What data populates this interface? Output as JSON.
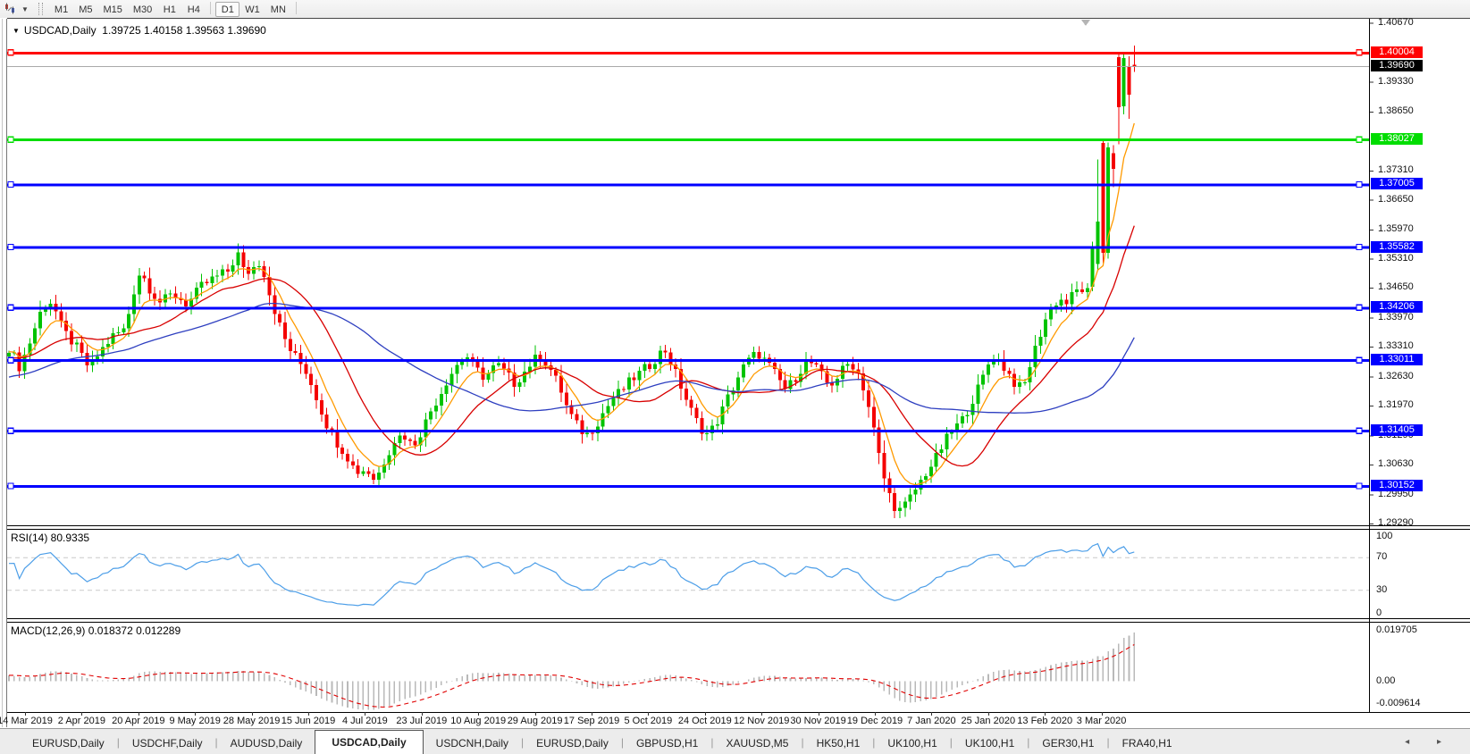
{
  "toolbar": {
    "icon": "chart-symbol-icon",
    "timeframes": [
      "M1",
      "M5",
      "M15",
      "M30",
      "H1",
      "H4",
      "D1",
      "W1",
      "MN"
    ],
    "active_timeframe": "D1"
  },
  "chart": {
    "title": "USDCAD,Daily",
    "ohlc_text": "1.39725 1.40158 1.39563 1.39690",
    "current_price": 1.3969,
    "price_axis_ticks": [
      1.4067,
      1.3933,
      1.3865,
      1.3731,
      1.3665,
      1.3597,
      1.3531,
      1.3465,
      1.3397,
      1.3331,
      1.3263,
      1.3197,
      1.3129,
      1.3063,
      1.2995,
      1.2929
    ],
    "levels": [
      {
        "price": 1.40004,
        "color": "#ff0000",
        "name": "resistance-line"
      },
      {
        "price": 1.38027,
        "color": "#00dd00",
        "name": "support-line"
      },
      {
        "price": 1.37005,
        "color": "#0000ff",
        "name": "level-line"
      },
      {
        "price": 1.35582,
        "color": "#0000ff",
        "name": "level-line"
      },
      {
        "price": 1.34206,
        "color": "#0000ff",
        "name": "level-line"
      },
      {
        "price": 1.33011,
        "color": "#0000ff",
        "name": "level-line"
      },
      {
        "price": 1.31405,
        "color": "#0000ff",
        "name": "level-line"
      },
      {
        "price": 1.30152,
        "color": "#0000ff",
        "name": "level-line"
      }
    ],
    "date_labels": [
      "14 Mar 2019",
      "2 Apr 2019",
      "20 Apr 2019",
      "9 May 2019",
      "28 May 2019",
      "15 Jun 2019",
      "4 Jul 2019",
      "23 Jul 2019",
      "10 Aug 2019",
      "29 Aug 2019",
      "17 Sep 2019",
      "5 Oct 2019",
      "24 Oct 2019",
      "12 Nov 2019",
      "30 Nov 2019",
      "19 Dec 2019",
      "7 Jan 2020",
      "25 Jan 2020",
      "13 Feb 2020",
      "3 Mar 2020"
    ]
  },
  "indicators": {
    "rsi": {
      "label": "RSI(14) 80.9335",
      "axis": [
        100,
        70,
        30,
        0
      ],
      "period": 14,
      "line_color": "#4c9ee8"
    },
    "macd": {
      "label": "MACD(12,26,9) 0.018372 0.012289",
      "axis_max": 0.019705,
      "axis_zero": "0.00",
      "axis_min": -0.009614,
      "hist_color": "#b9b9b9",
      "signal_color": "#e00000"
    }
  },
  "chart_data": {
    "type": "candlestick",
    "symbol": "USDCAD",
    "timeframe": "Daily",
    "current_bar": {
      "open": 1.39725,
      "high": 1.40158,
      "low": 1.39563,
      "close": 1.3969
    },
    "y_range": {
      "top": 1.4067,
      "bottom": 1.2929
    },
    "waypoints": [
      [
        10,
        1.333
      ],
      [
        22,
        1.3285
      ],
      [
        34,
        1.3345
      ],
      [
        48,
        1.3425
      ],
      [
        58,
        1.3435
      ],
      [
        70,
        1.337
      ],
      [
        84,
        1.3335
      ],
      [
        100,
        1.3282
      ],
      [
        112,
        1.332
      ],
      [
        126,
        1.3355
      ],
      [
        140,
        1.3372
      ],
      [
        150,
        1.346
      ],
      [
        157,
        1.3505
      ],
      [
        168,
        1.3462
      ],
      [
        180,
        1.3432
      ],
      [
        194,
        1.3452
      ],
      [
        210,
        1.3428
      ],
      [
        226,
        1.347
      ],
      [
        240,
        1.3488
      ],
      [
        256,
        1.3505
      ],
      [
        266,
        1.3545
      ],
      [
        274,
        1.3495
      ],
      [
        284,
        1.3512
      ],
      [
        292,
        1.3528
      ],
      [
        302,
        1.345
      ],
      [
        312,
        1.3385
      ],
      [
        322,
        1.3332
      ],
      [
        334,
        1.33
      ],
      [
        344,
        1.3272
      ],
      [
        354,
        1.3218
      ],
      [
        364,
        1.3162
      ],
      [
        376,
        1.3118
      ],
      [
        388,
        1.3085
      ],
      [
        398,
        1.3048
      ],
      [
        410,
        1.3052
      ],
      [
        420,
        1.3028
      ],
      [
        432,
        1.3082
      ],
      [
        442,
        1.3122
      ],
      [
        452,
        1.3132
      ],
      [
        462,
        1.3105
      ],
      [
        472,
        1.3142
      ],
      [
        482,
        1.3185
      ],
      [
        492,
        1.3222
      ],
      [
        502,
        1.3262
      ],
      [
        512,
        1.3292
      ],
      [
        522,
        1.3312
      ],
      [
        532,
        1.3282
      ],
      [
        542,
        1.3262
      ],
      [
        556,
        1.3292
      ],
      [
        566,
        1.3272
      ],
      [
        576,
        1.3248
      ],
      [
        586,
        1.3272
      ],
      [
        596,
        1.33
      ],
      [
        606,
        1.3312
      ],
      [
        616,
        1.328
      ],
      [
        626,
        1.3242
      ],
      [
        636,
        1.3185
      ],
      [
        646,
        1.3152
      ],
      [
        656,
        1.313
      ],
      [
        666,
        1.3152
      ],
      [
        676,
        1.3185
      ],
      [
        686,
        1.3215
      ],
      [
        696,
        1.3232
      ],
      [
        706,
        1.3255
      ],
      [
        716,
        1.3272
      ],
      [
        726,
        1.3288
      ],
      [
        736,
        1.3312
      ],
      [
        744,
        1.3326
      ],
      [
        752,
        1.3292
      ],
      [
        760,
        1.3252
      ],
      [
        768,
        1.3212
      ],
      [
        776,
        1.3175
      ],
      [
        784,
        1.3148
      ],
      [
        792,
        1.3132
      ],
      [
        800,
        1.3152
      ],
      [
        808,
        1.3185
      ],
      [
        816,
        1.3222
      ],
      [
        824,
        1.3255
      ],
      [
        832,
        1.3285
      ],
      [
        840,
        1.3305
      ],
      [
        848,
        1.3318
      ],
      [
        856,
        1.33
      ],
      [
        864,
        1.328
      ],
      [
        872,
        1.3256
      ],
      [
        880,
        1.3232
      ],
      [
        888,
        1.3256
      ],
      [
        896,
        1.328
      ],
      [
        904,
        1.33
      ],
      [
        912,
        1.3286
      ],
      [
        920,
        1.3264
      ],
      [
        928,
        1.3242
      ],
      [
        936,
        1.326
      ],
      [
        944,
        1.3282
      ],
      [
        952,
        1.3298
      ],
      [
        960,
        1.3272
      ],
      [
        968,
        1.323
      ],
      [
        976,
        1.316
      ],
      [
        984,
        1.308
      ],
      [
        992,
        1.301
      ],
      [
        1000,
        1.2972
      ],
      [
        1008,
        1.2958
      ],
      [
        1016,
        1.298
      ],
      [
        1026,
        1.3012
      ],
      [
        1036,
        1.3045
      ],
      [
        1046,
        1.3072
      ],
      [
        1056,
        1.3112
      ],
      [
        1066,
        1.3142
      ],
      [
        1076,
        1.3162
      ],
      [
        1086,
        1.3202
      ],
      [
        1096,
        1.3242
      ],
      [
        1106,
        1.3292
      ],
      [
        1113,
        1.3312
      ],
      [
        1121,
        1.3292
      ],
      [
        1129,
        1.327
      ],
      [
        1137,
        1.3244
      ],
      [
        1145,
        1.3234
      ],
      [
        1153,
        1.3292
      ],
      [
        1161,
        1.3342
      ],
      [
        1169,
        1.339
      ],
      [
        1177,
        1.342
      ],
      [
        1185,
        1.3442
      ],
      [
        1193,
        1.343
      ],
      [
        1201,
        1.3452
      ],
      [
        1209,
        1.3464
      ],
      [
        1217,
        1.3455
      ],
      [
        1222,
        1.3468
      ]
    ],
    "final_candles": [
      [
        1.3468,
        1.357,
        1.3458,
        1.3558
      ],
      [
        1.352,
        1.3757,
        1.3505,
        1.3616
      ],
      [
        1.3795,
        1.3802,
        1.3522,
        1.3545
      ],
      [
        1.3545,
        1.3796,
        1.3532,
        1.3785
      ],
      [
        1.3772,
        1.379,
        1.3694,
        1.3736
      ],
      [
        1.399,
        1.3998,
        1.3792,
        1.3876
      ],
      [
        1.3878,
        1.3999,
        1.386,
        1.3988
      ],
      [
        1.397,
        1.3992,
        1.385,
        1.3905
      ],
      [
        1.39725,
        1.40158,
        1.39563,
        1.3969
      ]
    ],
    "moving_averages": [
      {
        "name": "ma-fast",
        "type": "ema",
        "period": 7,
        "color": "#ff9a00"
      },
      {
        "name": "ma-mid",
        "type": "sma",
        "period": 18,
        "color": "#d80000"
      },
      {
        "name": "ma-slow",
        "type": "sma",
        "period": 45,
        "color": "#2e3fc0"
      }
    ],
    "bull_color": "#00c300",
    "bear_color": "#f40000"
  },
  "tabs": {
    "items": [
      "EURUSD,Daily",
      "USDCHF,Daily",
      "AUDUSD,Daily",
      "USDCAD,Daily",
      "USDCNH,Daily",
      "EURUSD,Daily",
      "GBPUSD,H1",
      "XAUUSD,M5",
      "HK50,H1",
      "UK100,H1",
      "UK100,H1",
      "GER30,H1",
      "FRA40,H1"
    ],
    "active_index": 3,
    "scroll_left": "◂",
    "scroll_right": "▸"
  }
}
